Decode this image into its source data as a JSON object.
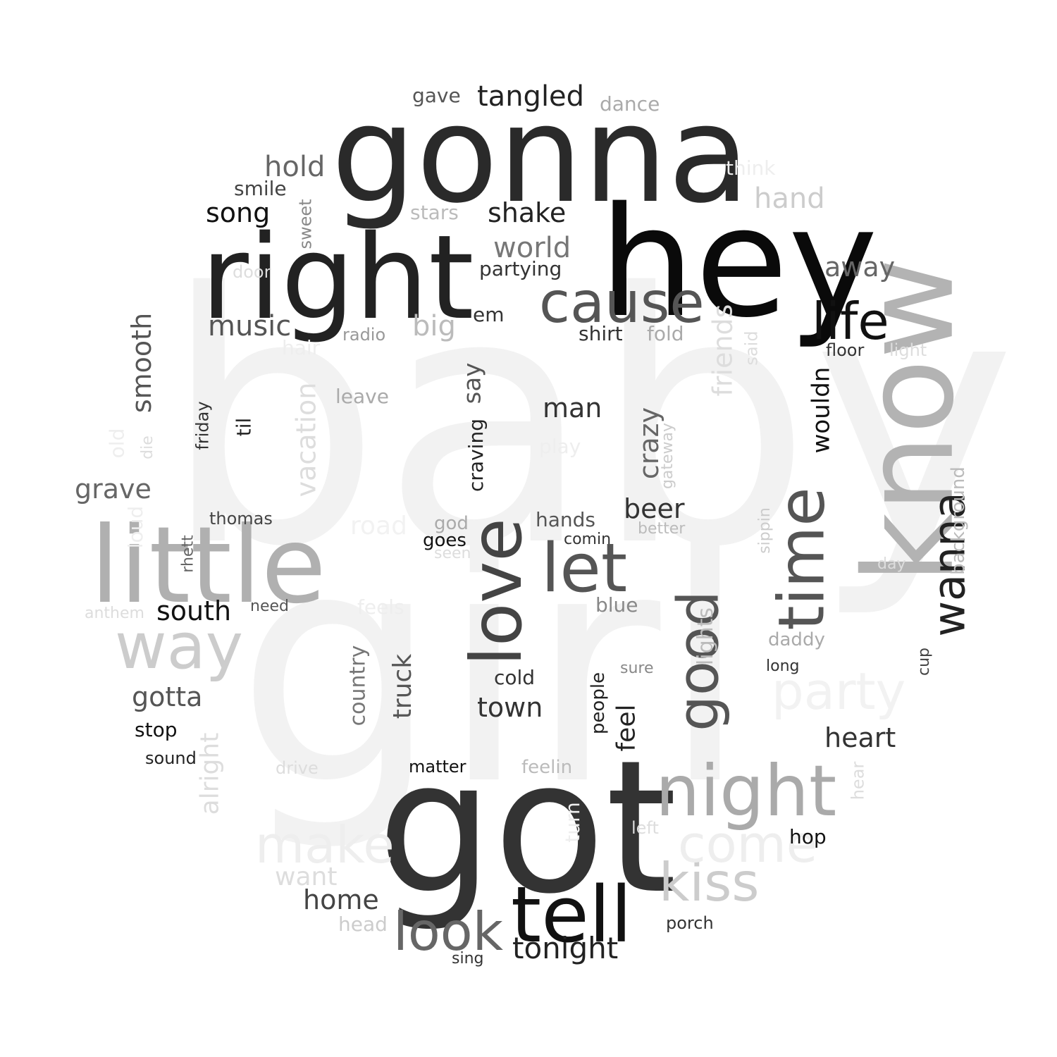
{
  "words": [
    {
      "text": "baby",
      "color": "#f2f2f2"
    },
    {
      "text": "girl",
      "color": "#f2f2f2"
    },
    {
      "text": "gonna",
      "color": "#2a2a2a"
    },
    {
      "text": "hey",
      "color": "#0a0a0a"
    },
    {
      "text": "right",
      "color": "#222222"
    },
    {
      "text": "got",
      "color": "#333333"
    },
    {
      "text": "know",
      "color": "#b3b3b3"
    },
    {
      "text": "little",
      "color": "#b0b0b0"
    },
    {
      "text": "cause",
      "color": "#555555"
    },
    {
      "text": "love",
      "color": "#444444"
    },
    {
      "text": "tell",
      "color": "#111111"
    },
    {
      "text": "let",
      "color": "#555555"
    },
    {
      "text": "time",
      "color": "#555555"
    },
    {
      "text": "life",
      "color": "#111111"
    },
    {
      "text": "night",
      "color": "#aaaaaa"
    },
    {
      "text": "good",
      "color": "#555555"
    },
    {
      "text": "way",
      "color": "#cccccc"
    },
    {
      "text": "look",
      "color": "#666666"
    },
    {
      "text": "wanna",
      "color": "#222222"
    },
    {
      "text": "kiss",
      "color": "#cccccc"
    },
    {
      "text": "make",
      "color": "#eeeeee"
    },
    {
      "text": "come",
      "color": "#eeeeee"
    },
    {
      "text": "party",
      "color": "#f2f2f2"
    },
    {
      "text": "tonight",
      "color": "#222222"
    },
    {
      "text": "tangled",
      "color": "#222222"
    },
    {
      "text": "hold",
      "color": "#666666"
    },
    {
      "text": "song",
      "color": "#111111"
    },
    {
      "text": "shake",
      "color": "#222222"
    },
    {
      "text": "world",
      "color": "#777777"
    },
    {
      "text": "music",
      "color": "#555555"
    },
    {
      "text": "big",
      "color": "#bbbbbb"
    },
    {
      "text": "hand",
      "color": "#cccccc"
    },
    {
      "text": "away",
      "color": "#666666"
    },
    {
      "text": "heart",
      "color": "#333333"
    },
    {
      "text": "gotta",
      "color": "#555555"
    },
    {
      "text": "grave",
      "color": "#666666"
    },
    {
      "text": "south",
      "color": "#111111"
    },
    {
      "text": "home",
      "color": "#444444"
    },
    {
      "text": "town",
      "color": "#333333"
    },
    {
      "text": "man",
      "color": "#333333"
    },
    {
      "text": "beer",
      "color": "#333333"
    },
    {
      "text": "smooth",
      "color": "#555555"
    },
    {
      "text": "vacation",
      "color": "#dddddd"
    },
    {
      "text": "crazy",
      "color": "#666666"
    },
    {
      "text": "friends",
      "color": "#dddddd"
    },
    {
      "text": "wouldn",
      "color": "#111111"
    },
    {
      "text": "say",
      "color": "#555555"
    },
    {
      "text": "truck",
      "color": "#555555"
    },
    {
      "text": "country",
      "color": "#777777"
    },
    {
      "text": "feel",
      "color": "#222222"
    },
    {
      "text": "lights",
      "color": "#bbbbbb"
    },
    {
      "text": "alright",
      "color": "#dddddd"
    },
    {
      "text": "smile",
      "color": "#444444"
    },
    {
      "text": "partying",
      "color": "#333333"
    },
    {
      "text": "gave",
      "color": "#555555"
    },
    {
      "text": "dance",
      "color": "#aaaaaa"
    },
    {
      "text": "think",
      "color": "#eeeeee"
    },
    {
      "text": "stars",
      "color": "#bbbbbb"
    },
    {
      "text": "sweet",
      "color": "#888888"
    },
    {
      "text": "door",
      "color": "#dddddd"
    },
    {
      "text": "em",
      "color": "#333333"
    },
    {
      "text": "shirt",
      "color": "#333333"
    },
    {
      "text": "fold",
      "color": "#aaaaaa"
    },
    {
      "text": "radio",
      "color": "#999999"
    },
    {
      "text": "hair",
      "color": "#eeeeee"
    },
    {
      "text": "said",
      "color": "#dddddd"
    },
    {
      "text": "floor",
      "color": "#333333"
    },
    {
      "text": "light",
      "color": "#dddddd"
    },
    {
      "text": "leave",
      "color": "#aaaaaa"
    },
    {
      "text": "friday",
      "color": "#333333"
    },
    {
      "text": "til",
      "color": "#222222"
    },
    {
      "text": "craving",
      "color": "#222222"
    },
    {
      "text": "old",
      "color": "#eeeeee"
    },
    {
      "text": "die",
      "color": "#dddddd"
    },
    {
      "text": "play",
      "color": "#eeeeee"
    },
    {
      "text": "gateway",
      "color": "#cccccc"
    },
    {
      "text": "background",
      "color": "#bbbbbb"
    },
    {
      "text": "thomas",
      "color": "#444444"
    },
    {
      "text": "loud",
      "color": "#eeeeee"
    },
    {
      "text": "road",
      "color": "#f2f2f2"
    },
    {
      "text": "god",
      "color": "#aaaaaa"
    },
    {
      "text": "hands",
      "color": "#555555"
    },
    {
      "text": "better",
      "color": "#bbbbbb"
    },
    {
      "text": "sippin",
      "color": "#cccccc"
    },
    {
      "text": "goes",
      "color": "#111111"
    },
    {
      "text": "comin",
      "color": "#333333"
    },
    {
      "text": "seen",
      "color": "#dddddd"
    },
    {
      "text": "rhett",
      "color": "#666666"
    },
    {
      "text": "day",
      "color": "#dddddd"
    },
    {
      "text": "anthem",
      "color": "#dddddd"
    },
    {
      "text": "need",
      "color": "#555555"
    },
    {
      "text": "feels",
      "color": "#eeeeee"
    },
    {
      "text": "blue",
      "color": "#888888"
    },
    {
      "text": "daddy",
      "color": "#aaaaaa"
    },
    {
      "text": "long",
      "color": "#333333"
    },
    {
      "text": "cup",
      "color": "#444444"
    },
    {
      "text": "cold",
      "color": "#333333"
    },
    {
      "text": "sure",
      "color": "#888888"
    },
    {
      "text": "people",
      "color": "#222222"
    },
    {
      "text": "stop",
      "color": "#111111"
    },
    {
      "text": "sound",
      "color": "#222222"
    },
    {
      "text": "drive",
      "color": "#dddddd"
    },
    {
      "text": "matter",
      "color": "#111111"
    },
    {
      "text": "feelin",
      "color": "#bbbbbb"
    },
    {
      "text": "hear",
      "color": "#dddddd"
    },
    {
      "text": "turn",
      "color": "#eeeeee"
    },
    {
      "text": "left",
      "color": "#dddddd"
    },
    {
      "text": "hop",
      "color": "#111111"
    },
    {
      "text": "want",
      "color": "#dddddd"
    },
    {
      "text": "head",
      "color": "#cccccc"
    },
    {
      "text": "porch",
      "color": "#333333"
    },
    {
      "text": "sing",
      "color": "#333333"
    }
  ]
}
